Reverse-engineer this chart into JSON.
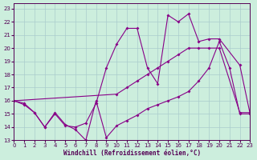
{
  "xlabel": "Windchill (Refroidissement éolien,°C)",
  "background_color": "#cceedd",
  "grid_color": "#aacccc",
  "line_color": "#880088",
  "xlim": [
    0,
    23
  ],
  "ylim": [
    13,
    23.4
  ],
  "xticks": [
    0,
    1,
    2,
    3,
    4,
    5,
    6,
    7,
    8,
    9,
    10,
    11,
    12,
    13,
    14,
    15,
    16,
    17,
    18,
    19,
    20,
    21,
    22,
    23
  ],
  "yticks": [
    13,
    14,
    15,
    16,
    17,
    18,
    19,
    20,
    21,
    22,
    23
  ],
  "s1_x": [
    0,
    1,
    2,
    3,
    4,
    5,
    6,
    7,
    8,
    9,
    10,
    11,
    12,
    13,
    14,
    15,
    16,
    17,
    18,
    19,
    20,
    21,
    22,
    23
  ],
  "s1_y": [
    16.0,
    15.8,
    15.1,
    14.0,
    15.1,
    14.2,
    13.8,
    13.0,
    16.0,
    13.2,
    14.1,
    14.5,
    14.9,
    15.4,
    15.7,
    16.0,
    16.3,
    16.7,
    17.5,
    18.5,
    20.5,
    18.5,
    15.0,
    15.0
  ],
  "s2_x": [
    0,
    1,
    2,
    3,
    4,
    5,
    6,
    7,
    8,
    9,
    10,
    11,
    12,
    13,
    14,
    15,
    16,
    17,
    18,
    19,
    20,
    22,
    23
  ],
  "s2_y": [
    16.0,
    15.7,
    15.1,
    14.0,
    15.0,
    14.1,
    14.0,
    14.3,
    15.8,
    18.5,
    20.3,
    21.5,
    21.5,
    18.5,
    17.3,
    22.5,
    22.0,
    22.6,
    20.5,
    20.7,
    20.7,
    18.7,
    15.0
  ],
  "s3_x": [
    0,
    10,
    11,
    12,
    13,
    14,
    15,
    16,
    17,
    18,
    19,
    20,
    22,
    23
  ],
  "s3_y": [
    16.0,
    16.5,
    17.0,
    17.5,
    18.0,
    18.5,
    19.0,
    19.5,
    20.0,
    20.0,
    20.0,
    20.0,
    15.1,
    15.1
  ]
}
